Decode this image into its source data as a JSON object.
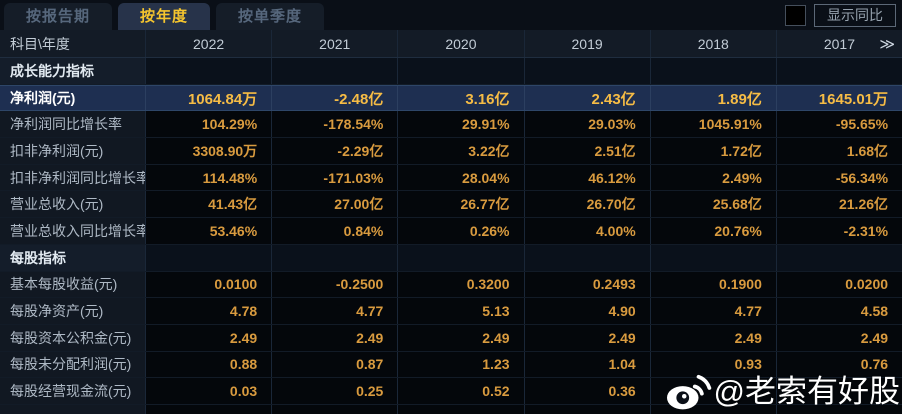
{
  "tabs": [
    {
      "label": "按报告期",
      "active": false
    },
    {
      "label": "按年度",
      "active": true
    },
    {
      "label": "按单季度",
      "active": false
    }
  ],
  "controls": {
    "show_yoy_label": "显示同比",
    "checkbox_checked": false
  },
  "table": {
    "corner_label": "科目\\年度",
    "years": [
      "2022",
      "2021",
      "2020",
      "2019",
      "2018",
      "2017"
    ],
    "more_icon": "≫",
    "rows": [
      {
        "label": "成长能力指标",
        "type": "section",
        "values": [
          "",
          "",
          "",
          "",
          "",
          ""
        ]
      },
      {
        "label": "净利润(元)",
        "type": "highlight",
        "values": [
          "1064.84万",
          "-2.48亿",
          "3.16亿",
          "2.43亿",
          "1.89亿",
          "1645.01万"
        ]
      },
      {
        "label": "净利润同比增长率",
        "type": "data",
        "values": [
          "104.29%",
          "-178.54%",
          "29.91%",
          "29.03%",
          "1045.91%",
          "-95.65%"
        ]
      },
      {
        "label": "扣非净利润(元)",
        "type": "data",
        "values": [
          "3308.90万",
          "-2.29亿",
          "3.22亿",
          "2.51亿",
          "1.72亿",
          "1.68亿"
        ]
      },
      {
        "label": "扣非净利润同比增长率",
        "type": "data",
        "values": [
          "114.48%",
          "-171.03%",
          "28.04%",
          "46.12%",
          "2.49%",
          "-56.34%"
        ]
      },
      {
        "label": "营业总收入(元)",
        "type": "data",
        "values": [
          "41.43亿",
          "27.00亿",
          "26.77亿",
          "26.70亿",
          "25.68亿",
          "21.26亿"
        ]
      },
      {
        "label": "营业总收入同比增长率",
        "type": "data",
        "values": [
          "53.46%",
          "0.84%",
          "0.26%",
          "4.00%",
          "20.76%",
          "-2.31%"
        ]
      },
      {
        "label": "每股指标",
        "type": "section",
        "values": [
          "",
          "",
          "",
          "",
          "",
          ""
        ]
      },
      {
        "label": "基本每股收益(元)",
        "type": "data",
        "values": [
          "0.0100",
          "-0.2500",
          "0.3200",
          "0.2493",
          "0.1900",
          "0.0200"
        ]
      },
      {
        "label": "每股净资产(元)",
        "type": "data",
        "values": [
          "4.78",
          "4.77",
          "5.13",
          "4.90",
          "4.77",
          "4.58"
        ]
      },
      {
        "label": "每股资本公积金(元)",
        "type": "data",
        "values": [
          "2.49",
          "2.49",
          "2.49",
          "2.49",
          "2.49",
          "2.49"
        ]
      },
      {
        "label": "每股未分配利润(元)",
        "type": "data",
        "values": [
          "0.88",
          "0.87",
          "1.23",
          "1.04",
          "0.93",
          "0.76"
        ]
      },
      {
        "label": "每股经营现金流(元)",
        "type": "data",
        "values": [
          "0.03",
          "0.25",
          "0.52",
          "0.36",
          "",
          ""
        ]
      }
    ]
  },
  "watermark": {
    "handle": "@老索有好股",
    "icon": "weibo-icon"
  },
  "colors": {
    "accent_gold": "#f5c52e",
    "value_orange": "#d99b3f",
    "highlight_row_bg": "#1e2f51",
    "panel_bg": "#0a0f17"
  }
}
